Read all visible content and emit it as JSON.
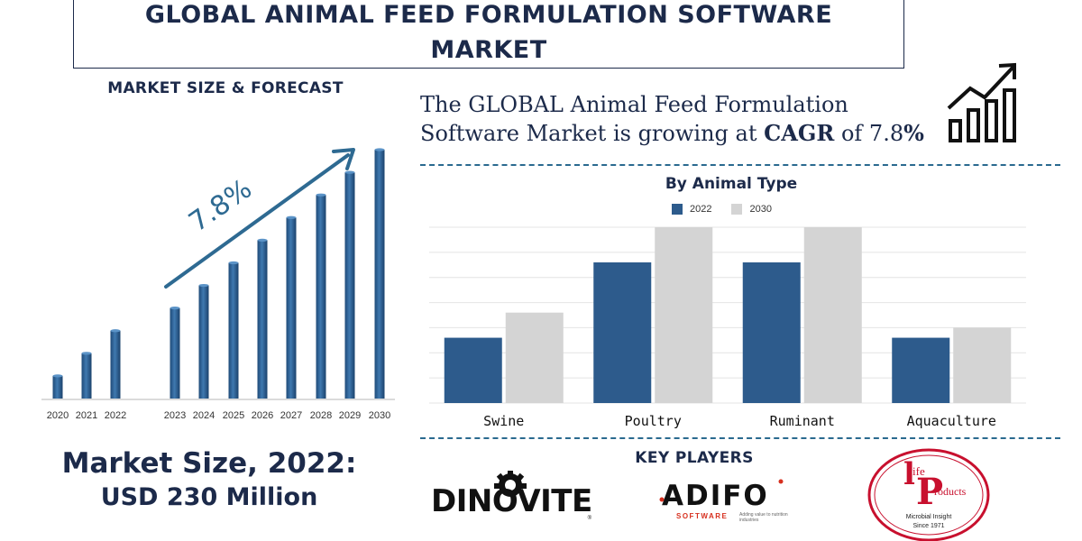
{
  "title": "GLOBAL ANIMAL FEED FORMULATION SOFTWARE MARKET",
  "left": {
    "heading": "MARKET SIZE & FORECAST",
    "growth_label": "7.8%",
    "market_size_line1": "Market Size, 2022:",
    "market_size_line2": "USD 230 Million"
  },
  "cagr": {
    "line1": "The GLOBAL Animal Feed Formulation",
    "line2_prefix": "Software Market is growing at",
    "cagr_word": "CAGR",
    "line2_of": "of",
    "rate": "7.8",
    "percent": "%"
  },
  "key_players": {
    "heading": "KEY PLAYERS",
    "dinovite": "DINOVITE",
    "dinovite_tm": "®",
    "adifo": "ADIFO",
    "adifo_sub": "SOFTWARE",
    "adifo_tag": "Adding value to nutrition industries",
    "life_products": "life Products",
    "life_tag1": "Microbial Insight",
    "life_tag2": "Since 1971"
  },
  "colors": {
    "navy": "#1c2a4a",
    "bar_blue": "#2d5b8c",
    "bar_grey": "#d4d4d4",
    "arrow": "#2e6a92",
    "dash": "#2a6a8f",
    "life_red": "#c8102e"
  },
  "chart_data": [
    {
      "type": "bar",
      "title": "MARKET SIZE & FORECAST",
      "categories": [
        "2020",
        "2021",
        "2022",
        "2023",
        "2024",
        "2025",
        "2026",
        "2027",
        "2028",
        "2029",
        "2030"
      ],
      "values": [
        1,
        2,
        3,
        4,
        5,
        6,
        7,
        8,
        9,
        10,
        11
      ],
      "ylim": [
        0,
        11
      ],
      "annotation": "7.8%"
    },
    {
      "type": "bar",
      "title": "By Animal Type",
      "categories": [
        "Swine",
        "Poultry",
        "Ruminant",
        "Aquaculture"
      ],
      "series": [
        {
          "name": "2022",
          "values": [
            13,
            28,
            28,
            13
          ]
        },
        {
          "name": "2030",
          "values": [
            18,
            35,
            35,
            15
          ]
        }
      ],
      "ylim": [
        0,
        35
      ],
      "legend": "top-center",
      "grid": true
    }
  ]
}
